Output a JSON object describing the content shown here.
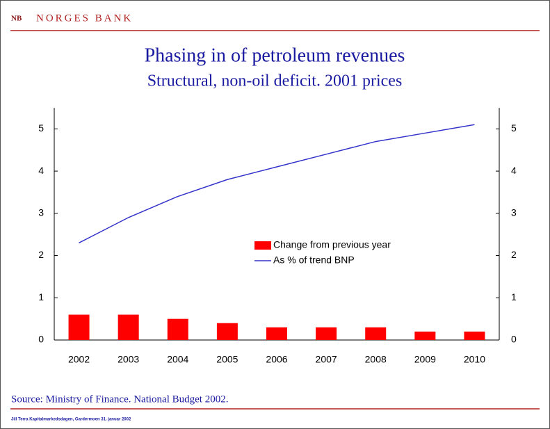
{
  "header": {
    "logo": "NB",
    "bank": "NORGES BANK"
  },
  "chart_data": {
    "type": "bar-line",
    "title": "Phasing in of petroleum revenues",
    "subtitle": "Structural, non-oil deficit. 2001 prices",
    "categories": [
      "2002",
      "2003",
      "2004",
      "2005",
      "2006",
      "2007",
      "2008",
      "2009",
      "2010"
    ],
    "series": [
      {
        "name": "Change from previous year",
        "type": "bar",
        "color": "#ff0000",
        "values": [
          0.6,
          0.6,
          0.5,
          0.4,
          0.3,
          0.3,
          0.3,
          0.2,
          0.2
        ]
      },
      {
        "name": "As % of trend BNP",
        "type": "line",
        "color": "#3333cc",
        "values": [
          2.3,
          2.9,
          3.4,
          3.8,
          4.1,
          4.4,
          4.7,
          4.9,
          5.1
        ]
      }
    ],
    "ylim": [
      0,
      5.5
    ],
    "yticks": [
      0,
      1,
      2,
      3,
      4,
      5
    ],
    "y2lim": [
      0,
      5.5
    ],
    "y2ticks": [
      0,
      1,
      2,
      3,
      4,
      5
    ],
    "grid": false
  },
  "footer": {
    "source": "Source: Ministry of Finance. National Budget 2002.",
    "event": "Jill Terra Kapitalmarkedsdagen, Gardermoen 31. januar 2002"
  }
}
